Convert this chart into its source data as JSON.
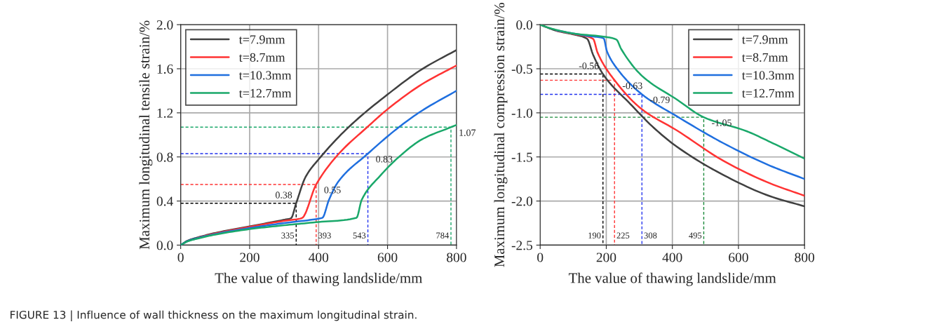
{
  "chart_data": [
    {
      "type": "line",
      "xlabel": "The value of thawing landslide/mm",
      "ylabel": "Maximum longitudinal tensile strain/%",
      "xlim": [
        0,
        800
      ],
      "xticks": [
        0,
        200,
        400,
        600,
        800
      ],
      "ylim": [
        0.0,
        2.0
      ],
      "yticks": [
        {
          "value": 0,
          "label": "0.0"
        },
        0.4,
        0.8,
        1.2,
        1.6,
        {
          "value": 2,
          "label": "2.0"
        }
      ],
      "grid": true,
      "legend": "top left",
      "line_style": "solid",
      "marker": "none",
      "series": [
        {
          "name": "t=7.9mm",
          "color": "#404040",
          "x": [
            0,
            20,
            50,
            100,
            200,
            300,
            320,
            335,
            362,
            402,
            487,
            599,
            700,
            800
          ],
          "values": [
            0,
            0.04,
            0.07,
            0.11,
            0.17,
            0.23,
            0.244,
            0.38,
            0.617,
            0.785,
            1.07,
            1.364,
            1.596,
            1.77
          ]
        },
        {
          "name": "t=8.7mm",
          "color": "#ff3333",
          "x": [
            50,
            100,
            200,
            300,
            351,
            393,
            459,
            541,
            599,
            700,
            800
          ],
          "values": [
            0.067,
            0.105,
            0.165,
            0.22,
            0.244,
            0.55,
            0.83,
            1.07,
            1.23,
            1.46,
            1.63
          ]
        },
        {
          "name": "t=10.3mm",
          "color": "#1f6fdf",
          "x": [
            0,
            20,
            50,
            100,
            200,
            300,
            400,
            411,
            430,
            457,
            543,
            633,
            700,
            800
          ],
          "values": [
            0,
            0.036,
            0.064,
            0.1,
            0.155,
            0.2,
            0.24,
            0.248,
            0.41,
            0.575,
            0.83,
            1.07,
            1.22,
            1.4
          ]
        },
        {
          "name": "t=12.7mm",
          "color": "#1aa86a",
          "x": [
            0,
            20,
            50,
            100,
            200,
            300,
            400,
            510,
            525,
            579,
            633,
            700,
            784,
            800
          ],
          "values": [
            0,
            0.034,
            0.06,
            0.095,
            0.145,
            0.18,
            0.21,
            0.248,
            0.41,
            0.63,
            0.8,
            0.96,
            1.07,
            1.09
          ]
        },
        {
          "color": "#000000",
          "line_style": "dashed",
          "x": [
            0,
            335,
            335
          ],
          "values": [
            0.38,
            0.38,
            0
          ]
        },
        {
          "color": "#ff3333",
          "line_style": "dashed",
          "x": [
            0,
            393,
            393
          ],
          "values": [
            0.55,
            0.55,
            0
          ]
        },
        {
          "color": "#2233ee",
          "line_style": "dashed",
          "x": [
            0,
            543,
            543
          ],
          "values": [
            0.83,
            0.83,
            0
          ]
        },
        {
          "color": "#1aa86a",
          "line_style": "dashed",
          "x": [
            0,
            784,
            784
          ],
          "values": [
            1.07,
            1.07,
            0
          ]
        }
      ],
      "annotations": [
        {
          "text": "0.38",
          "x": 335,
          "y": 0.38
        },
        {
          "text": "0.55",
          "x": 393,
          "y": 0.55
        },
        {
          "text": "0.83",
          "x": 543,
          "y": 0.83
        },
        {
          "text": "1.07",
          "x": 784,
          "y": 1.07
        },
        {
          "text": "335",
          "x": 335,
          "y": 0
        },
        {
          "text": "393",
          "x": 393,
          "y": 0
        },
        {
          "text": "543",
          "x": 543,
          "y": 0
        },
        {
          "text": "784",
          "x": 784,
          "y": 0
        },
        "FIGURE 13 | Influence of wall thickness on the maximum longitudinal strain."
      ]
    },
    {
      "type": "line",
      "xlabel": "The value of thawing landslide/mm",
      "ylabel": "Maximum longitudinal compression strain/%",
      "xlim": [
        0,
        800
      ],
      "xticks": [
        0,
        200,
        400,
        600,
        800
      ],
      "ylim": [
        -2.5,
        0.0
      ],
      "yticks": [
        -2.5,
        {
          "value": -2,
          "label": "-2.0"
        },
        -1.5,
        {
          "value": -1,
          "label": "-1.0"
        },
        -0.5,
        {
          "value": 0,
          "label": "0.0"
        }
      ],
      "grid": true,
      "legend": "top right",
      "line_style": "solid",
      "marker": "none",
      "series": [
        {
          "name": "t=7.9mm",
          "color": "#404040",
          "x": [
            0,
            20,
            50,
            100,
            142,
            160,
            190,
            273,
            344,
            414,
            555,
            696,
            800
          ],
          "values": [
            0,
            -0.03,
            -0.07,
            -0.11,
            -0.16,
            -0.34,
            -0.56,
            -0.9,
            -1.17,
            -1.385,
            -1.706,
            -1.946,
            -2.06
          ]
        },
        {
          "name": "t=8.7mm",
          "color": "#ff3333",
          "x": [
            50,
            100,
            160,
            174,
            225,
            308,
            414,
            555,
            696,
            800
          ],
          "values": [
            -0.068,
            -0.105,
            -0.16,
            -0.32,
            -0.63,
            -0.96,
            -1.2,
            -1.545,
            -1.8,
            -1.94
          ]
        },
        {
          "name": "t=10.3mm",
          "color": "#1f6fdf",
          "x": [
            50,
            100,
            150,
            192,
            202,
            231,
            308,
            414,
            555,
            696,
            800
          ],
          "values": [
            -0.065,
            -0.1,
            -0.13,
            -0.155,
            -0.3,
            -0.49,
            -0.79,
            -1.04,
            -1.345,
            -1.6,
            -1.75
          ]
        },
        {
          "name": "t=12.7mm",
          "color": "#1aa86a",
          "x": [
            0,
            20,
            50,
            100,
            200,
            231,
            245,
            308,
            414,
            495,
            626,
            696,
            800
          ],
          "values": [
            0,
            -0.028,
            -0.06,
            -0.1,
            -0.14,
            -0.17,
            -0.275,
            -0.58,
            -0.85,
            -1.05,
            -1.21,
            -1.33,
            -1.52
          ]
        },
        {
          "color": "#000000",
          "line_style": "dashed",
          "x": [
            0,
            190,
            190
          ],
          "values": [
            -0.56,
            -0.56,
            -2.5
          ]
        },
        {
          "color": "#ff3333",
          "line_style": "dashed",
          "x": [
            0,
            225,
            225
          ],
          "values": [
            -0.63,
            -0.63,
            -2.5
          ]
        },
        {
          "color": "#2233ee",
          "line_style": "dashed",
          "x": [
            0,
            308,
            308
          ],
          "values": [
            -0.79,
            -0.79,
            -2.5
          ]
        },
        {
          "color": "#1a8a3a",
          "line_style": "dashed",
          "x": [
            0,
            495,
            495
          ],
          "values": [
            -1.05,
            -1.05,
            -2.5
          ]
        }
      ],
      "annotations": [
        {
          "text": "-0.56",
          "x": 190,
          "y": -0.56
        },
        {
          "text": "-0.63",
          "x": 225,
          "y": -0.63
        },
        {
          "text": "-0.79",
          "x": 308,
          "y": -0.79
        },
        {
          "text": "-1.05",
          "x": 495,
          "y": -1.05
        },
        {
          "text": "190",
          "x": 190,
          "y": -2.5
        },
        {
          "text": "225",
          "x": 225,
          "y": -2.5
        },
        {
          "text": "308",
          "x": 308,
          "y": -2.5
        },
        {
          "text": "495",
          "x": 495,
          "y": -2.5
        }
      ]
    }
  ]
}
